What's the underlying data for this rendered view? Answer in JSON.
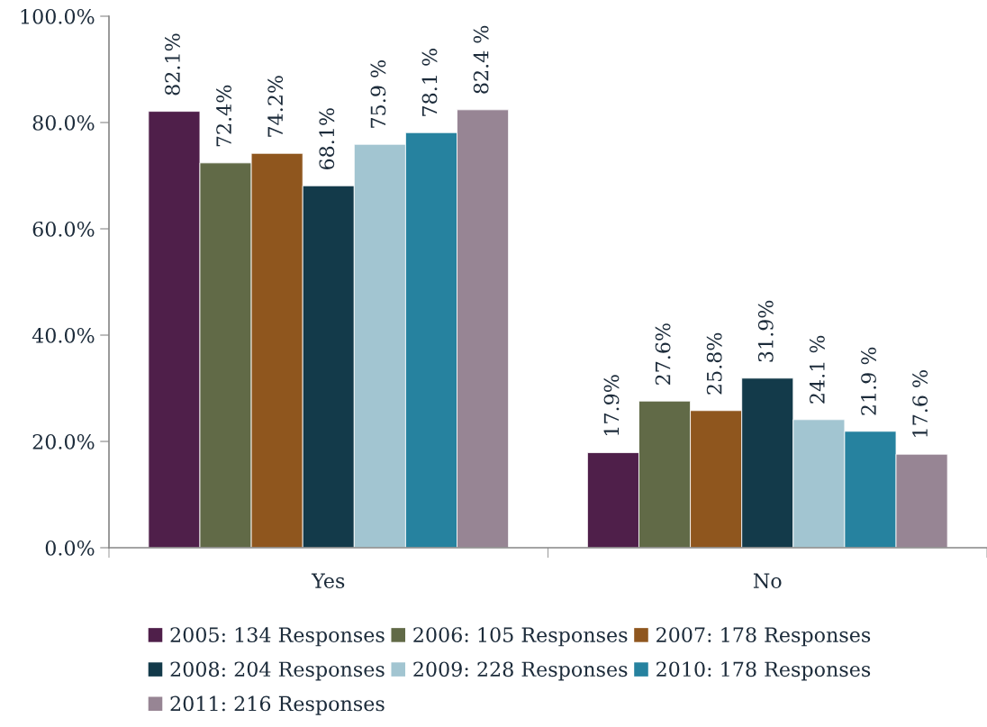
{
  "chart_data": {
    "type": "bar",
    "categories": [
      "Yes",
      "No"
    ],
    "series": [
      {
        "name": "2005: 134 Responses",
        "color": "#4f1f4a",
        "values": [
          82.1,
          17.9
        ],
        "value_labels": [
          "82.1%",
          "17.9%"
        ]
      },
      {
        "name": "2006: 105 Responses",
        "color": "#616a47",
        "values": [
          72.4,
          27.6
        ],
        "value_labels": [
          "72.4%",
          "27.6%"
        ]
      },
      {
        "name": "2007: 178 Responses",
        "color": "#8f561e",
        "values": [
          74.2,
          25.8
        ],
        "value_labels": [
          "74.2%",
          "25.8%"
        ]
      },
      {
        "name": "2008: 204 Responses",
        "color": "#133a4a",
        "values": [
          68.1,
          31.9
        ],
        "value_labels": [
          "68.1%",
          "31.9%"
        ]
      },
      {
        "name": "2009: 228 Responses",
        "color": "#a2c5d1",
        "values": [
          75.9,
          24.1
        ],
        "value_labels": [
          "75.9 %",
          "24.1 %"
        ]
      },
      {
        "name": "2010: 178 Responses",
        "color": "#26829f",
        "values": [
          78.1,
          21.9
        ],
        "value_labels": [
          "78.1 %",
          "21.9 %"
        ]
      },
      {
        "name": "2011: 216 Responses",
        "color": "#978594",
        "values": [
          82.4,
          17.6
        ],
        "value_labels": [
          "82.4 %",
          "17.6 %"
        ]
      }
    ],
    "ylim": [
      0,
      100
    ],
    "yticks": [
      {
        "value": 0,
        "label": "0.0%"
      },
      {
        "value": 20,
        "label": "20.0%"
      },
      {
        "value": 40,
        "label": "40.0%"
      },
      {
        "value": 60,
        "label": "60.0%"
      },
      {
        "value": 80,
        "label": "80.0%"
      },
      {
        "value": 100,
        "label": "100.0%"
      }
    ],
    "grid": false,
    "legend": "bottom"
  }
}
